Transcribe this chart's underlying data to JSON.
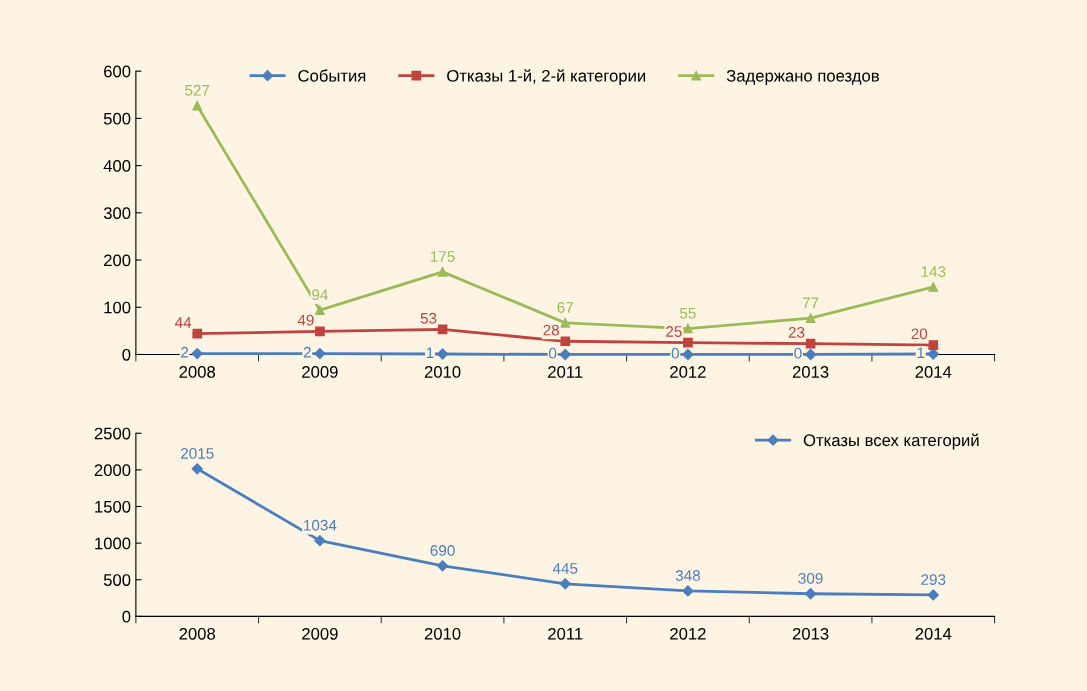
{
  "chart_data": [
    {
      "type": "line",
      "categories": [
        "2008",
        "2009",
        "2010",
        "2011",
        "2012",
        "2013",
        "2014"
      ],
      "ylim": [
        0,
        600
      ],
      "yticks": [
        0,
        100,
        200,
        300,
        400,
        500,
        600
      ],
      "grid": false,
      "legend": "top",
      "data_labels": true,
      "series": [
        {
          "name": "События",
          "color": "#4a7ebf",
          "marker": "diamond",
          "values": [
            2,
            2,
            1,
            0,
            0,
            0,
            1
          ]
        },
        {
          "name": "Отказы 1-й, 2-й категории",
          "color": "#c0433d",
          "marker": "square",
          "values": [
            44,
            49,
            53,
            28,
            25,
            23,
            20
          ]
        },
        {
          "name": "Задержано поездов",
          "color": "#9bbb59",
          "marker": "triangle",
          "values": [
            527,
            94,
            175,
            67,
            55,
            77,
            143
          ]
        }
      ]
    },
    {
      "type": "line",
      "categories": [
        "2008",
        "2009",
        "2010",
        "2011",
        "2012",
        "2013",
        "2014"
      ],
      "ylim": [
        0,
        2500
      ],
      "yticks": [
        0,
        500,
        1000,
        1500,
        2000,
        2500
      ],
      "grid": false,
      "legend": "top right",
      "data_labels": true,
      "series": [
        {
          "name": "Отказы всех категорий",
          "color": "#4a7ebf",
          "marker": "diamond",
          "values": [
            2015,
            1034,
            690,
            445,
            348,
            309,
            293
          ]
        }
      ]
    }
  ]
}
